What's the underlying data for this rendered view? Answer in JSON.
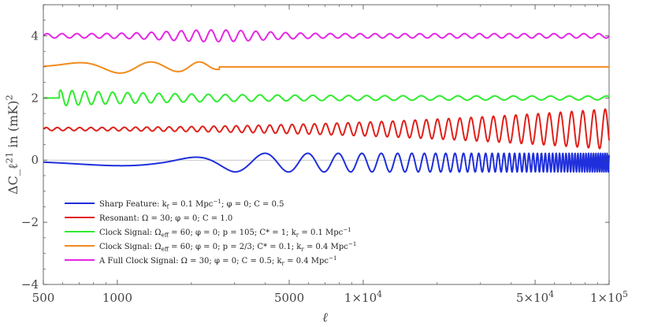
{
  "chart_data": {
    "type": "line",
    "x_scale": "log",
    "xlim": [
      500,
      100000
    ],
    "ylim": [
      -4,
      5
    ],
    "xlabel": "ℓ",
    "ylabel": "ΔC_ℓ^21 in (mK)^2",
    "x_ticks": [
      {
        "value": 500,
        "label": "500"
      },
      {
        "value": 1000,
        "label": "1000"
      },
      {
        "value": 5000,
        "label": "5000"
      },
      {
        "value": 10000,
        "label": "1×10^4"
      },
      {
        "value": 50000,
        "label": "5×10^4"
      },
      {
        "value": 100000,
        "label": "1×10^5"
      }
    ],
    "y_ticks": [
      {
        "value": 4,
        "label": "4"
      },
      {
        "value": 2,
        "label": "2"
      },
      {
        "value": 0,
        "label": "0"
      },
      {
        "value": -2,
        "label": "−2"
      },
      {
        "value": -4,
        "label": "−4"
      }
    ],
    "grid": "horizontal line at y = 0",
    "legend_position": "bottom-left",
    "series": [
      {
        "name": "Sharp Feature: k_f = 0.1 Mpc^−1; φ = 0; C = 0.5",
        "color": "#1f2fdc",
        "offset": 0
      },
      {
        "name": "Resonant: Ω = 30; φ = 0; C = 1.0",
        "color": "#e0201a",
        "offset": 1
      },
      {
        "name": "Clock Signal: Ω_eff = 60; φ = 0; p = 105; C* = 1; k_r = 0.1 Mpc^−1",
        "color": "#2eec2e",
        "offset": 2
      },
      {
        "name": "Clock Signal: Ω_eff = 60; φ = 0; p = 2/3; C* = 0.1; k_r = 0.4 Mpc^−1",
        "color": "#f28a1c",
        "offset": 3
      },
      {
        "name": "A Full Clock Signal: Ω = 30; φ = 0; C = 0.5; k_r = 0.4 Mpc^−1",
        "color": "#e626e6",
        "offset": 4
      }
    ]
  }
}
